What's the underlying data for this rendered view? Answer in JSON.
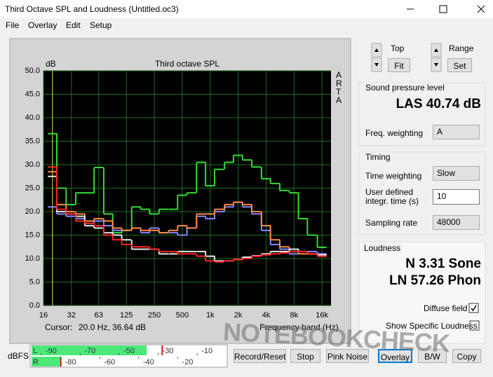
{
  "window": {
    "title": "Third Octave SPL and Loudness (Untitled.oc3)"
  },
  "menu": [
    "File",
    "Overlay",
    "Edit",
    "Setup"
  ],
  "chart_data": {
    "type": "line",
    "step": true,
    "title": "Third octave SPL",
    "y_unit": "dB",
    "side_label": "ARTA",
    "xlabel": "Frequency band (Hz)",
    "cursor_label": "Cursor:",
    "cursor_text": "20.0 Hz, 36.64 dB",
    "cursor_x": 20,
    "x": [
      20,
      25,
      31.5,
      40,
      50,
      63,
      80,
      100,
      125,
      160,
      200,
      250,
      315,
      400,
      500,
      630,
      800,
      1000,
      1250,
      1600,
      2000,
      2500,
      3150,
      4000,
      5000,
      6300,
      8000,
      10000,
      12500,
      16000
    ],
    "xscale": "log",
    "xlim": [
      16,
      20000
    ],
    "xticks": [
      16,
      32,
      63,
      125,
      250,
      500,
      {
        "value": 1000,
        "label": "1k"
      },
      {
        "value": 2000,
        "label": "2k"
      },
      {
        "value": 4000,
        "label": "4k"
      },
      {
        "value": 8000,
        "label": "8k"
      },
      {
        "value": 16000,
        "label": "16k"
      }
    ],
    "ylim": [
      0,
      50
    ],
    "yticks": [
      {
        "value": 0,
        "label": "0.0"
      },
      {
        "value": 5,
        "label": "5.0"
      },
      {
        "value": 10,
        "label": "10.0"
      },
      {
        "value": 15,
        "label": "15.0"
      },
      {
        "value": 20,
        "label": "20.0"
      },
      {
        "value": 25,
        "label": "25.0"
      },
      {
        "value": 30,
        "label": "30.0"
      },
      {
        "value": 35,
        "label": "35.0"
      },
      {
        "value": 40,
        "label": "40.0"
      },
      {
        "value": 45,
        "label": "45.0"
      },
      {
        "value": 50,
        "label": "50.0"
      }
    ],
    "grid": true,
    "background": "#000000",
    "grid_color": "#1e6e1e",
    "cursor_color": "#e0e060",
    "series": [
      {
        "color": "#33dd33",
        "values": [
          36.6,
          25.0,
          21.5,
          24.0,
          24.0,
          29.4,
          19.5,
          15.5,
          16.0,
          21.0,
          20.5,
          19.5,
          20.5,
          20.5,
          23.5,
          24.0,
          30.5,
          25.5,
          29.0,
          30.5,
          32.0,
          31.0,
          29.5,
          27.0,
          26.0,
          24.5,
          24.0,
          18.5,
          15.0,
          12.4
        ]
      },
      {
        "color": "#8888ff",
        "values": [
          21.0,
          19.5,
          19.0,
          18.5,
          17.5,
          18.0,
          17.0,
          16.0,
          16.0,
          16.5,
          15.5,
          16.5,
          15.5,
          15.5,
          15.0,
          16.5,
          19.0,
          18.5,
          20.0,
          21.0,
          22.0,
          21.0,
          19.5,
          16.0,
          13.0,
          12.0,
          11.0,
          11.5,
          11.5,
          11.0
        ]
      },
      {
        "color": "#ff8844",
        "values": [
          28.5,
          21.5,
          20.0,
          19.5,
          18.0,
          18.5,
          18.0,
          16.5,
          16.0,
          16.5,
          16.0,
          16.0,
          15.5,
          16.0,
          17.0,
          16.5,
          19.5,
          19.5,
          20.5,
          21.5,
          22.0,
          21.5,
          20.0,
          17.0,
          14.0,
          12.5,
          11.5,
          11.0,
          11.0,
          10.5
        ]
      },
      {
        "color": "#e6e6e6",
        "values": [
          27.5,
          20.0,
          19.5,
          19.0,
          17.0,
          16.5,
          15.5,
          15.0,
          14.0,
          12.0,
          12.0,
          12.0,
          11.0,
          11.0,
          11.5,
          11.5,
          11.5,
          10.5,
          9.5,
          9.5,
          9.8,
          10.3,
          10.6,
          11.0,
          11.5,
          11.5,
          12.0,
          11.5,
          11.0,
          10.8
        ]
      },
      {
        "color": "#ff2222",
        "values": [
          29.5,
          20.5,
          19.5,
          18.0,
          17.5,
          17.0,
          15.0,
          14.0,
          13.0,
          12.5,
          12.5,
          12.0,
          11.5,
          11.5,
          11.0,
          11.0,
          10.5,
          9.5,
          9.3,
          9.5,
          9.8,
          10.0,
          10.5,
          10.8,
          11.0,
          11.2,
          11.5,
          11.5,
          11.0,
          10.5
        ]
      }
    ]
  },
  "controls": {
    "top_label": "Top",
    "fit": "Fit",
    "range_label": "Range",
    "set": "Set",
    "spl": {
      "title": "Sound pressure level",
      "value": "LAS 40.74 dB",
      "freq_weighting_label": "Freq. weighting",
      "freq_weighting": "A"
    },
    "timing": {
      "title": "Timing",
      "time_weighting_label": "Time weighting",
      "time_weighting": "Slow",
      "integr_label": [
        "User defined",
        "integr. time (s)"
      ],
      "integr_time": "10",
      "sampling_rate_label": "Sampling rate",
      "sampling_rate": "48000"
    },
    "loudness": {
      "title": "Loudness",
      "n": "N 3.31 Sone",
      "ln": "LN 57.26 Phon",
      "diffuse_field_label": "Diffuse field",
      "diffuse_field": true,
      "show_specific_label": "Show Specific Loudness",
      "show_specific": false
    }
  },
  "meter": {
    "label": "dBFS",
    "xlim": [
      -100,
      0
    ],
    "top_ticks": [
      -90,
      -70,
      -50,
      -30,
      -10
    ],
    "bottom_ticks": [
      -80,
      -60,
      -40,
      -20
    ],
    "channels": [
      {
        "name": "L",
        "level": -41,
        "peak": -33
      },
      {
        "name": "R",
        "level": -85,
        "peak": -85
      }
    ]
  },
  "buttons": [
    "Record/Reset",
    "Stop",
    "Pink Noise",
    "Overlay",
    "B/W",
    "Copy"
  ],
  "watermark": "NOTEBOOKCHECK"
}
